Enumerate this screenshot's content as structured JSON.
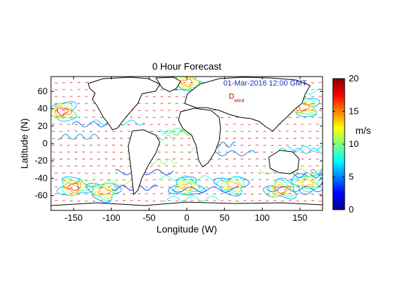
{
  "chart_data": {
    "type": "heatmap",
    "title": "0 Hour Forecast",
    "xlabel": "Longitude (W)",
    "ylabel": "Latitude (N)",
    "xlim": [
      -180,
      180
    ],
    "ylim": [
      -77,
      77
    ],
    "xticks": [
      -150,
      -100,
      -50,
      0,
      50,
      100,
      150
    ],
    "yticks": [
      -60,
      -40,
      -20,
      0,
      20,
      40,
      60
    ],
    "colorbar": {
      "label": "m/s",
      "range": [
        0,
        20
      ],
      "ticks": [
        0,
        5,
        10,
        15,
        20
      ],
      "colormap": "jet"
    },
    "annotations": {
      "timestamp": "01-Mar-2016 12:00 GMT",
      "symbol": "D",
      "symbol_sub": "wind"
    },
    "colors": {
      "timestamp": "#1f2fb8",
      "symbol": "#cc0000",
      "coast": "#000000"
    },
    "high_wind_centers": [
      {
        "lon": -165,
        "lat": 37,
        "value": 18
      },
      {
        "lon": 155,
        "lat": 42,
        "value": 17
      },
      {
        "lon": 0,
        "lat": 70,
        "value": 16
      },
      {
        "lon": -150,
        "lat": -50,
        "value": 18
      },
      {
        "lon": -110,
        "lat": -55,
        "value": 16
      },
      {
        "lon": 0,
        "lat": -50,
        "value": 15
      },
      {
        "lon": 60,
        "lat": -48,
        "value": 15
      },
      {
        "lon": 125,
        "lat": -53,
        "value": 17
      },
      {
        "lon": 160,
        "lat": -45,
        "value": 15
      }
    ]
  }
}
